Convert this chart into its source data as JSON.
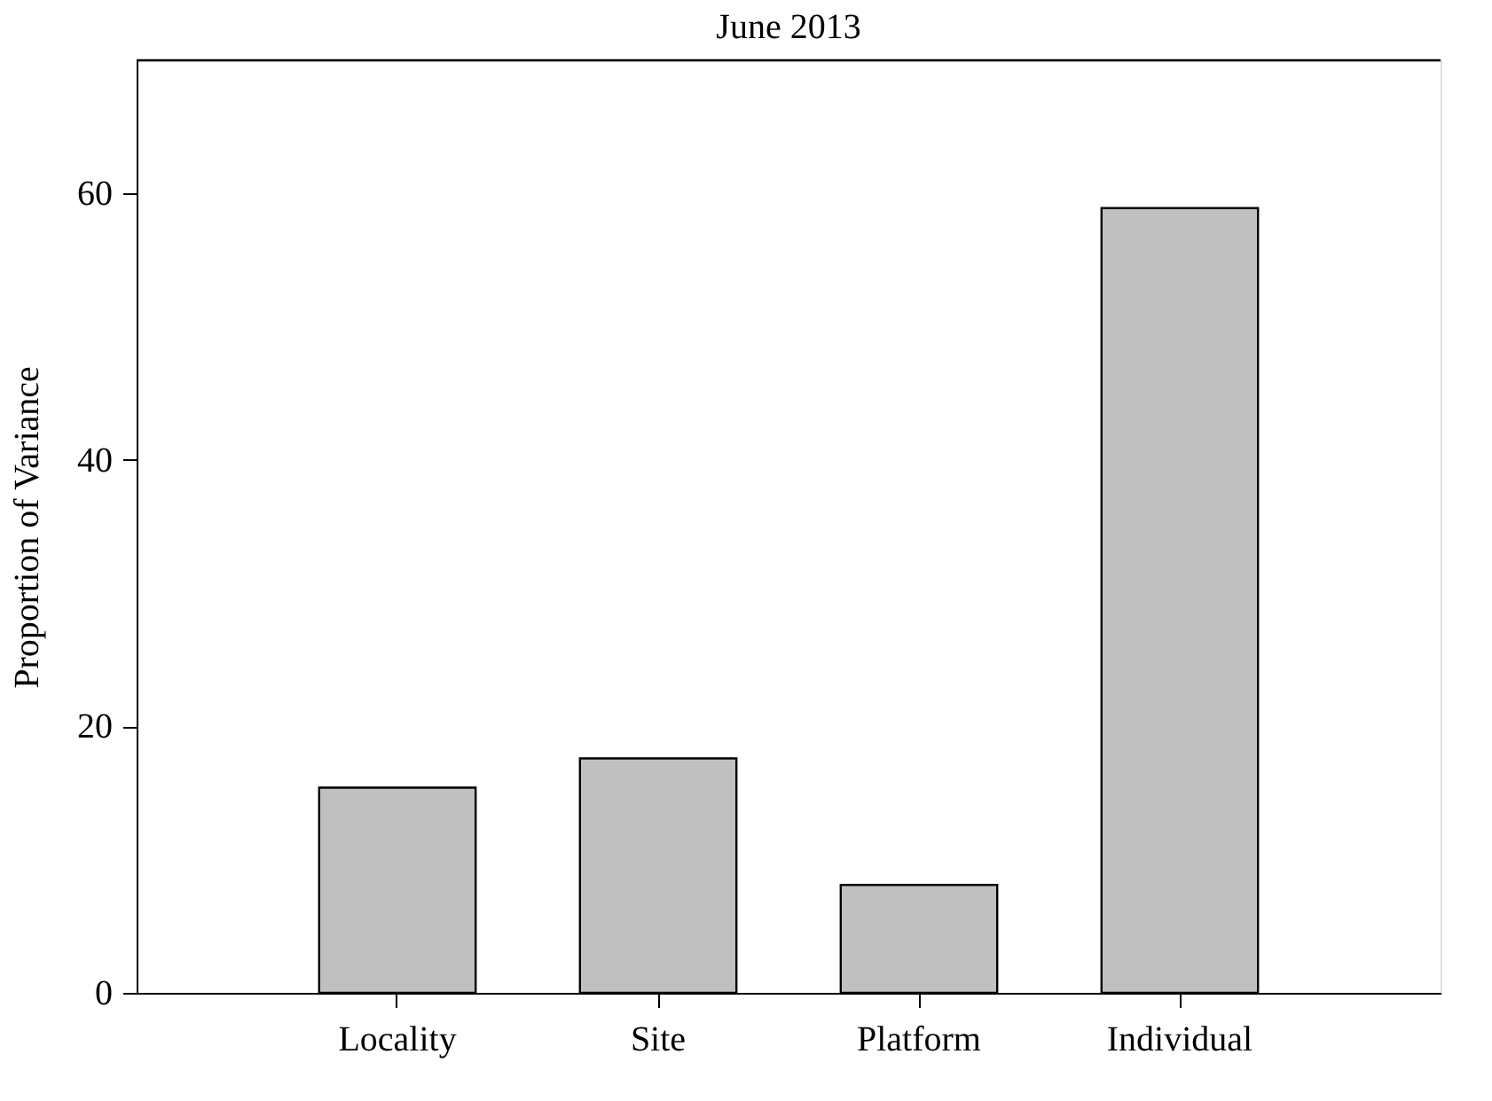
{
  "chart_data": {
    "type": "bar",
    "title": "June 2013",
    "ylabel": "Proportion of Variance",
    "categories": [
      "Locality",
      "Site",
      "Platform",
      "Individual"
    ],
    "values": [
      15.4,
      17.6,
      8.1,
      58.9
    ],
    "color": "#c0c0c0",
    "ylim": [
      0,
      70
    ],
    "yticks": [
      0,
      20,
      40,
      60
    ],
    "grid": false
  }
}
